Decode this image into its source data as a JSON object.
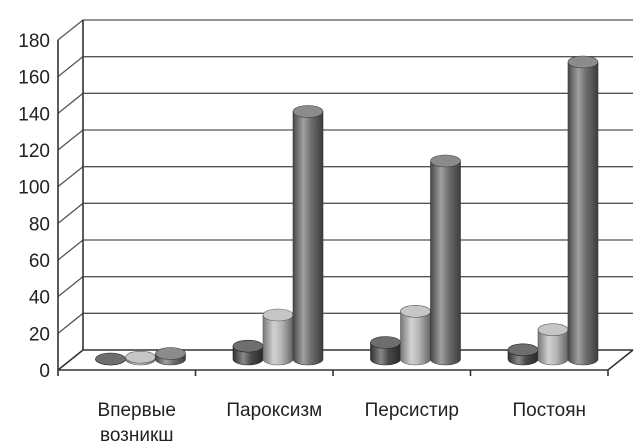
{
  "chart_data": {
    "type": "bar",
    "style": "3d-cylinder",
    "categories": [
      [
        "Впервые",
        "возникш"
      ],
      [
        "Пароксизм"
      ],
      [
        "Персистир"
      ],
      [
        "Постоян"
      ]
    ],
    "series": [
      {
        "values": [
          0,
          7,
          9,
          5
        ],
        "color": "#4a4a4a"
      },
      {
        "values": [
          1,
          24,
          26,
          16
        ],
        "color": "#b8b8b8"
      },
      {
        "values": [
          3,
          135,
          108,
          162
        ],
        "color": "#6e6e6e"
      }
    ],
    "ylim": [
      0,
      180
    ],
    "yticks": [
      "0",
      "20",
      "40",
      "60",
      "80",
      "100",
      "120",
      "140",
      "160",
      "180"
    ],
    "grid": true,
    "legend": "none"
  }
}
